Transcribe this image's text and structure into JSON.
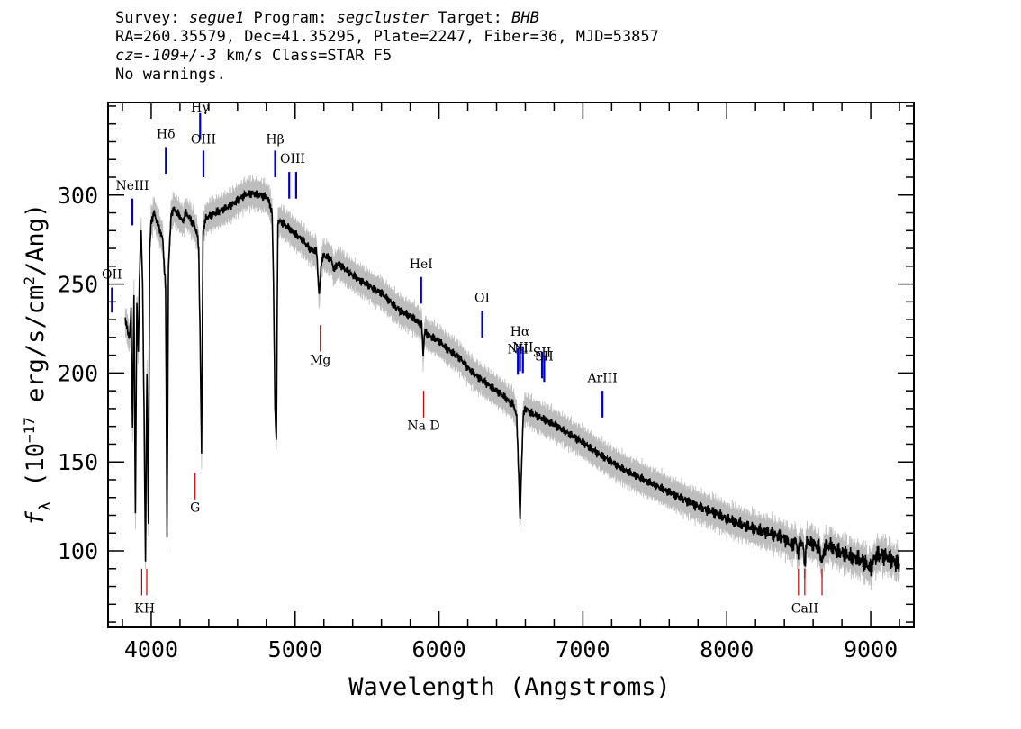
{
  "header": {
    "line1_survey_label": "Survey: ",
    "line1_survey": "segue1",
    "line1_program_label": " Program: ",
    "line1_program": "segcluster",
    "line1_target_label": " Target: ",
    "line1_target": "BHB",
    "line2": "RA=260.35579, Dec=41.35295, Plate=2247, Fiber=36, MJD=53857",
    "line3_cz": "cz=-109+/-3",
    "line3_rest": " km/s Class=STAR F5",
    "line4": "No warnings."
  },
  "colors": {
    "flux": "#000000",
    "error_band": "#bdbdbd",
    "emission_line": "#0000cc",
    "absorption_line": "#cc0000",
    "axes": "#000000"
  },
  "chart_data": {
    "type": "line",
    "xlabel": "Wavelength (Angstroms)",
    "ylabel_parts": [
      "f",
      "λ",
      " (10",
      "−17",
      " erg/s/cm",
      "2",
      "/Ang)"
    ],
    "xlim": [
      3700,
      9300
    ],
    "ylim": [
      57,
      352
    ],
    "x_ticks": [
      4000,
      5000,
      6000,
      7000,
      8000,
      9000
    ],
    "x_tick_labels": [
      "4000",
      "5000",
      "6000",
      "7000",
      "8000",
      "9000"
    ],
    "y_ticks": [
      100,
      150,
      200,
      250,
      300
    ],
    "y_tick_labels": [
      "100",
      "150",
      "200",
      "250",
      "300"
    ],
    "x_minor_step": 200,
    "y_minor_step": 10,
    "series": [
      {
        "x": [
          3820,
          3840,
          3850,
          3860,
          3870,
          3880,
          3890,
          3900,
          3910,
          3920,
          3930,
          3940,
          3950,
          3960,
          3970,
          3980,
          3990,
          4000,
          4020,
          4040,
          4060,
          4080,
          4090,
          4100,
          4110,
          4120,
          4140,
          4160,
          4180,
          4200,
          4220,
          4240,
          4260,
          4280,
          4300,
          4320,
          4330,
          4340,
          4350,
          4360,
          4380,
          4400,
          4450,
          4500,
          4550,
          4600,
          4650,
          4700,
          4750,
          4800,
          4820,
          4840,
          4850,
          4860,
          4870,
          4880,
          4900,
          4920,
          4950,
          5000,
          5050,
          5100,
          5150,
          5167,
          5175,
          5183,
          5200,
          5250,
          5270,
          5300,
          5350,
          5400,
          5450,
          5500,
          5550,
          5600,
          5650,
          5700,
          5750,
          5800,
          5850,
          5880,
          5890,
          5896,
          5900,
          5920,
          5950,
          6000,
          6050,
          6100,
          6150,
          6200,
          6250,
          6300,
          6350,
          6400,
          6450,
          6500,
          6520,
          6540,
          6555,
          6563,
          6570,
          6585,
          6600,
          6620,
          6650,
          6700,
          6800,
          6900,
          7000,
          7100,
          7200,
          7300,
          7400,
          7500,
          7600,
          7700,
          7800,
          7900,
          8000,
          8100,
          8200,
          8300,
          8400,
          8450,
          8480,
          8498,
          8510,
          8530,
          8542,
          8555,
          8600,
          8640,
          8662,
          8680,
          8720,
          8760,
          8800,
          8850,
          8900,
          8950,
          9000,
          9020,
          9050,
          9100,
          9150,
          9200
        ],
        "y": [
          230,
          222,
          220,
          235,
          170,
          245,
          120,
          240,
          210,
          260,
          280,
          250,
          180,
          95,
          200,
          115,
          270,
          285,
          290,
          285,
          280,
          275,
          260,
          250,
          106,
          260,
          290,
          292,
          290,
          288,
          285,
          290,
          288,
          285,
          283,
          278,
          270,
          220,
          154,
          280,
          287,
          288,
          290,
          292,
          294,
          297,
          300,
          301,
          300,
          299,
          296,
          290,
          250,
          180,
          160,
          285,
          285,
          284,
          282,
          278,
          275,
          270,
          268,
          243,
          252,
          263,
          266,
          264,
          258,
          262,
          258,
          255,
          252,
          250,
          247,
          245,
          241,
          237,
          234,
          232,
          229,
          227,
          210,
          218,
          223,
          222,
          220,
          218,
          214,
          211,
          208,
          203,
          199,
          196,
          193,
          190,
          187,
          183,
          182,
          175,
          140,
          114,
          138,
          176,
          180,
          179,
          177,
          175,
          171,
          166,
          161,
          155,
          150,
          145,
          141,
          137,
          133,
          129,
          125,
          122,
          118,
          115,
          112,
          110,
          107,
          103,
          106,
          98,
          106,
          103,
          92,
          105,
          104,
          102,
          93,
          102,
          103,
          100,
          99,
          97,
          96,
          94,
          90,
          95,
          98,
          97,
          95,
          92
        ]
      }
    ],
    "error_band_halfwidth": 6,
    "line_markers": [
      {
        "label": "OII",
        "x": 3727,
        "type": "emission",
        "y0": 234,
        "y1": 248,
        "ty": 253
      },
      {
        "label": "NeIII",
        "x": 3869,
        "type": "emission",
        "y0": 283,
        "y1": 298,
        "ty": 303
      },
      {
        "label": "Hδ",
        "x": 4102,
        "type": "emission",
        "y0": 312,
        "y1": 327,
        "ty": 332
      },
      {
        "label": "Hγ",
        "x": 4340,
        "type": "emission",
        "y0": 331,
        "y1": 346,
        "ty": 347
      },
      {
        "label": "OIII",
        "x": 4363,
        "type": "emission",
        "y0": 310,
        "y1": 325,
        "ty": 329
      },
      {
        "label": "Hβ",
        "x": 4861,
        "type": "emission",
        "y0": 310,
        "y1": 325,
        "ty": 329
      },
      {
        "label": "OIII",
        "x": 4959,
        "type": "emission",
        "y0": 298,
        "y1": 313,
        "ty": 318
      },
      {
        "label": "OIII",
        "x": 5007,
        "type": "emission",
        "y0": 298,
        "y1": 313,
        "ty": 318
      },
      {
        "label": "HeI",
        "x": 5876,
        "type": "emission",
        "y0": 239,
        "y1": 254,
        "ty": 259
      },
      {
        "label": "OI",
        "x": 6300,
        "type": "emission",
        "y0": 220,
        "y1": 235,
        "ty": 240
      },
      {
        "label": "NII",
        "x": 6548,
        "type": "emission",
        "y0": 199,
        "y1": 214,
        "ty": 211
      },
      {
        "label": "Hα",
        "x": 6563,
        "type": "emission",
        "y0": 201,
        "y1": 216,
        "ty": 221
      },
      {
        "label": "NII",
        "x": 6583,
        "type": "emission",
        "y0": 200,
        "y1": 215,
        "ty": 212
      },
      {
        "label": "SII",
        "x": 6716,
        "type": "emission",
        "y0": 197,
        "y1": 212,
        "ty": 209
      },
      {
        "label": "SII",
        "x": 6731,
        "type": "emission",
        "y0": 195,
        "y1": 210,
        "ty": 207
      },
      {
        "label": "ArIII",
        "x": 7136,
        "type": "emission",
        "y0": 175,
        "y1": 190,
        "ty": 195
      },
      {
        "label": "Mg",
        "x": 5175,
        "type": "absorption",
        "y0": 212,
        "y1": 227,
        "ty": 205
      },
      {
        "label": "Na D",
        "x": 5893,
        "type": "absorption",
        "y0": 175,
        "y1": 190,
        "ty": 168
      },
      {
        "label": "G",
        "x": 4305,
        "type": "absorption",
        "y0": 129,
        "y1": 144,
        "ty": 122
      },
      {
        "label": "K",
        "x": 3934,
        "type": "absorption",
        "y0": 75,
        "y1": 90,
        "ty": 68
      },
      {
        "label": "H",
        "x": 3969,
        "type": "absorption",
        "y0": 75,
        "y1": 90,
        "ty": 68
      },
      {
        "label": "CaII",
        "x": 8498,
        "type": "absorption",
        "y0": 75,
        "y1": 90,
        "ty": 68
      },
      {
        "label": "CaII",
        "x": 8542,
        "type": "absorption",
        "y0": 75,
        "y1": 90,
        "ty": 68
      },
      {
        "label": "CaII",
        "x": 8662,
        "type": "absorption",
        "y0": 75,
        "y1": 90,
        "ty": 68
      }
    ]
  }
}
